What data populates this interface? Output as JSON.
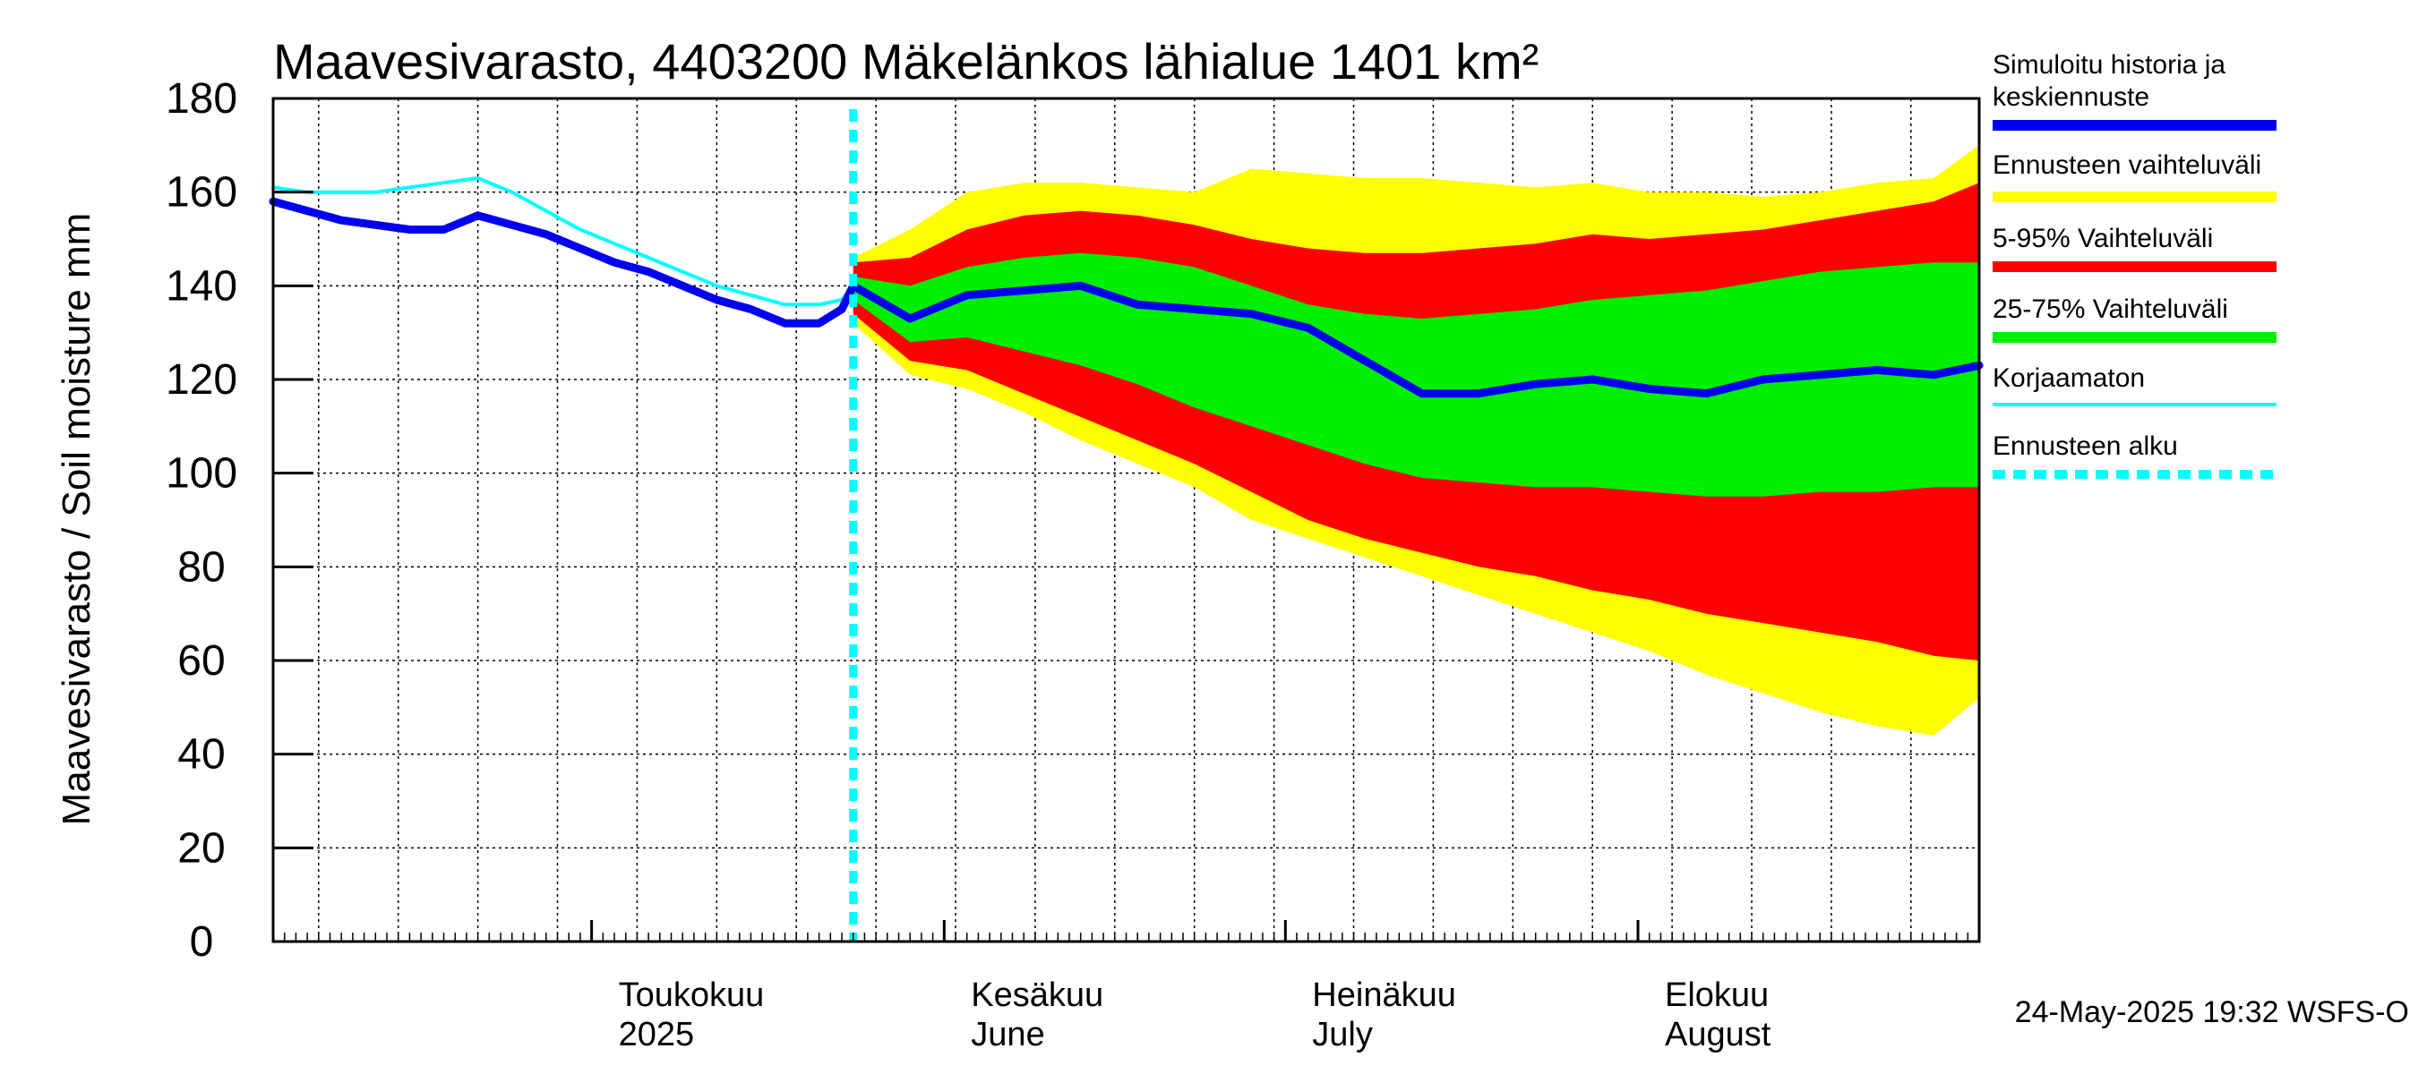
{
  "chart_data": {
    "type": "area",
    "title": "Maavesivarasto, 4403200 Mäkelänkos lähialue 1401 km²",
    "ylabel": "Maavesivarasto / Soil moisture   mm",
    "ylim": [
      0,
      180
    ],
    "yticks": [
      0,
      20,
      40,
      60,
      80,
      100,
      120,
      140,
      160,
      180
    ],
    "xlim": [
      "2025-04-03",
      "2025-08-31"
    ],
    "grid": true,
    "month_labels": [
      {
        "date": "2025-05-01",
        "line1": "Toukokuu",
        "line2": "2025"
      },
      {
        "date": "2025-06-01",
        "line1": "Kesäkuu",
        "line2": "June"
      },
      {
        "date": "2025-07-01",
        "line1": "Heinäkuu",
        "line2": "July"
      },
      {
        "date": "2025-08-01",
        "line1": "Elokuu",
        "line2": "August"
      }
    ],
    "forecast_start": "2025-05-24",
    "history": {
      "x": [
        0,
        3,
        6,
        9,
        12,
        15,
        18,
        21,
        24,
        27,
        30,
        33,
        36,
        39,
        42,
        45,
        48,
        50,
        51
      ],
      "simulated": [
        158,
        156,
        154,
        153,
        152,
        152,
        155,
        153,
        151,
        148,
        145,
        143,
        140,
        137,
        135,
        132,
        132,
        135,
        140
      ],
      "uncorrected": [
        161,
        160,
        160,
        160,
        161,
        162,
        163,
        160,
        156,
        152,
        149,
        146,
        143,
        140,
        138,
        136,
        136,
        137,
        140
      ]
    },
    "forecast": {
      "x": [
        51,
        56,
        61,
        66,
        71,
        76,
        81,
        86,
        91,
        96,
        101,
        106,
        111,
        116,
        121,
        126,
        131,
        136,
        141,
        146,
        150
      ],
      "ens_max": [
        146,
        152,
        160,
        162,
        162,
        161,
        160,
        165,
        164,
        163,
        163,
        162,
        161,
        162,
        160,
        160,
        159,
        160,
        162,
        163,
        170
      ],
      "p95": [
        145,
        146,
        152,
        155,
        156,
        155,
        153,
        150,
        148,
        147,
        147,
        148,
        149,
        151,
        150,
        151,
        152,
        154,
        156,
        158,
        162
      ],
      "p75": [
        142,
        140,
        144,
        146,
        147,
        146,
        144,
        140,
        136,
        134,
        133,
        134,
        135,
        137,
        138,
        139,
        141,
        143,
        144,
        145,
        145
      ],
      "median": [
        140,
        133,
        138,
        139,
        140,
        136,
        135,
        134,
        131,
        124,
        117,
        117,
        119,
        120,
        118,
        117,
        120,
        121,
        122,
        121,
        123
      ],
      "p25": [
        137,
        128,
        129,
        126,
        123,
        119,
        114,
        110,
        106,
        102,
        99,
        98,
        97,
        97,
        96,
        95,
        95,
        96,
        96,
        97,
        97
      ],
      "p05": [
        134,
        124,
        122,
        117,
        112,
        107,
        102,
        96,
        90,
        86,
        83,
        80,
        78,
        75,
        73,
        70,
        68,
        66,
        64,
        61,
        60
      ],
      "ens_min": [
        132,
        121,
        118,
        113,
        107,
        102,
        97,
        90,
        86,
        82,
        78,
        74,
        70,
        66,
        62,
        57,
        53,
        49,
        46,
        44,
        52
      ]
    },
    "legend": [
      {
        "label": "Simuloitu historia ja",
        "label2": "keskiennuste",
        "color": "#0000ee",
        "style": "thick"
      },
      {
        "label": "Ennusteen vaihteluväli",
        "color": "#ffff00",
        "style": "thick"
      },
      {
        "label": "5-95% Vaihteluväli",
        "color": "#ff0000",
        "style": "thick"
      },
      {
        "label": "25-75% Vaihteluväli",
        "color": "#00ee00",
        "style": "thick"
      },
      {
        "label": "Korjaamaton",
        "color": "#00ffff",
        "style": "thin"
      },
      {
        "label": "Ennusteen alku",
        "color": "#00ffff",
        "style": "dashed"
      }
    ],
    "timestamp": "24-May-2025 19:32 WSFS-O"
  },
  "colors": {
    "median": "#0000ee",
    "ensemble": "#ffff00",
    "p5_95": "#ff0000",
    "p25_75": "#00ee00",
    "uncorrected": "#00ffff",
    "forecast_start": "#00ffff"
  }
}
